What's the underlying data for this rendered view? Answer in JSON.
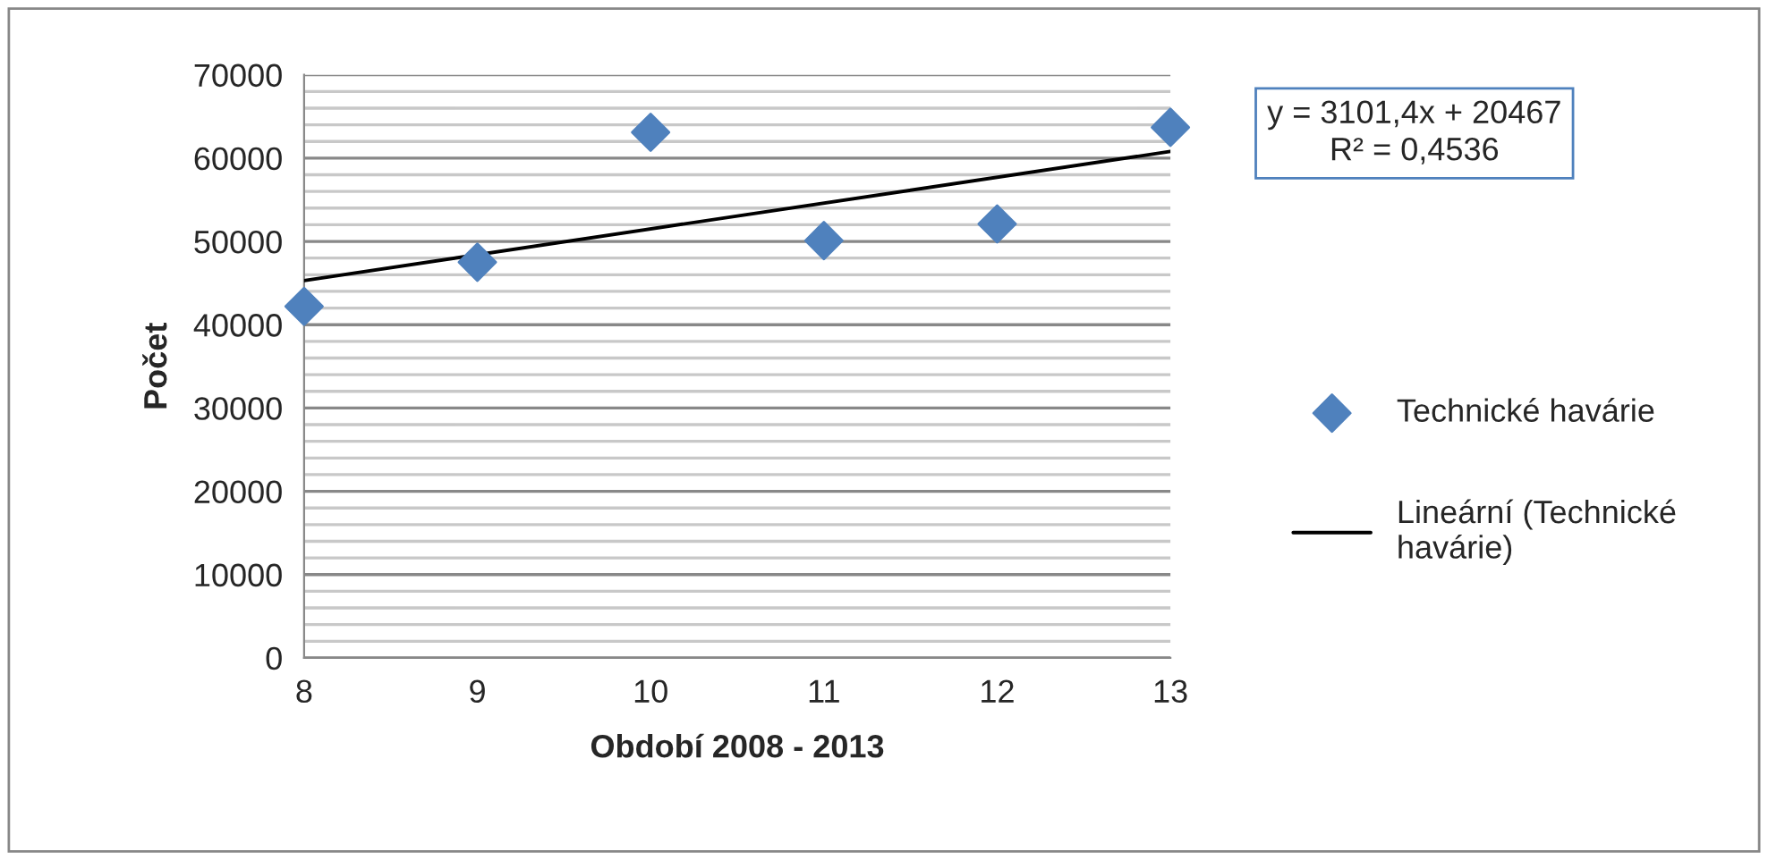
{
  "chart_data": {
    "type": "scatter",
    "xlabel": "Období 2008 - 2013",
    "ylabel": "Počet",
    "x": [
      8,
      9,
      10,
      11,
      12,
      13
    ],
    "series": [
      {
        "name": "Technické havárie",
        "color": "#4f81bd",
        "marker": "diamond",
        "values": [
          42200,
          47500,
          63100,
          50100,
          52100,
          63700
        ]
      },
      {
        "name": "Lineární (Technické havárie)",
        "type": "line",
        "color": "#000000",
        "marker": "none",
        "line_style": "solid",
        "x": [
          8,
          13
        ],
        "values": [
          45300,
          60800
        ]
      }
    ],
    "annotations": [
      "y = 3101,4x + 20467\nR² = 0,4536"
    ],
    "xlim": [
      8,
      13
    ],
    "xticks": [
      8,
      9,
      10,
      11,
      12,
      13
    ],
    "ylim": [
      0,
      70000
    ],
    "yticks": [
      0,
      {
        "value": 2000,
        "label": null
      },
      {
        "value": 4000,
        "label": null
      },
      {
        "value": 6000,
        "label": null
      },
      {
        "value": 8000,
        "label": null
      },
      10000,
      {
        "value": 12000,
        "label": null
      },
      {
        "value": 14000,
        "label": null
      },
      {
        "value": 16000,
        "label": null
      },
      {
        "value": 18000,
        "label": null
      },
      20000,
      {
        "value": 22000,
        "label": null
      },
      {
        "value": 24000,
        "label": null
      },
      {
        "value": 26000,
        "label": null
      },
      {
        "value": 28000,
        "label": null
      },
      30000,
      {
        "value": 32000,
        "label": null
      },
      {
        "value": 34000,
        "label": null
      },
      {
        "value": 36000,
        "label": null
      },
      {
        "value": 38000,
        "label": null
      },
      40000,
      {
        "value": 42000,
        "label": null
      },
      {
        "value": 44000,
        "label": null
      },
      {
        "value": 46000,
        "label": null
      },
      {
        "value": 48000,
        "label": null
      },
      50000,
      {
        "value": 52000,
        "label": null
      },
      {
        "value": 54000,
        "label": null
      },
      {
        "value": 56000,
        "label": null
      },
      {
        "value": 58000,
        "label": null
      },
      60000,
      {
        "value": 62000,
        "label": null
      },
      {
        "value": 64000,
        "label": null
      },
      {
        "value": 66000,
        "label": null
      },
      {
        "value": 68000,
        "label": null
      },
      70000
    ],
    "grid": "y",
    "legend": "right"
  }
}
